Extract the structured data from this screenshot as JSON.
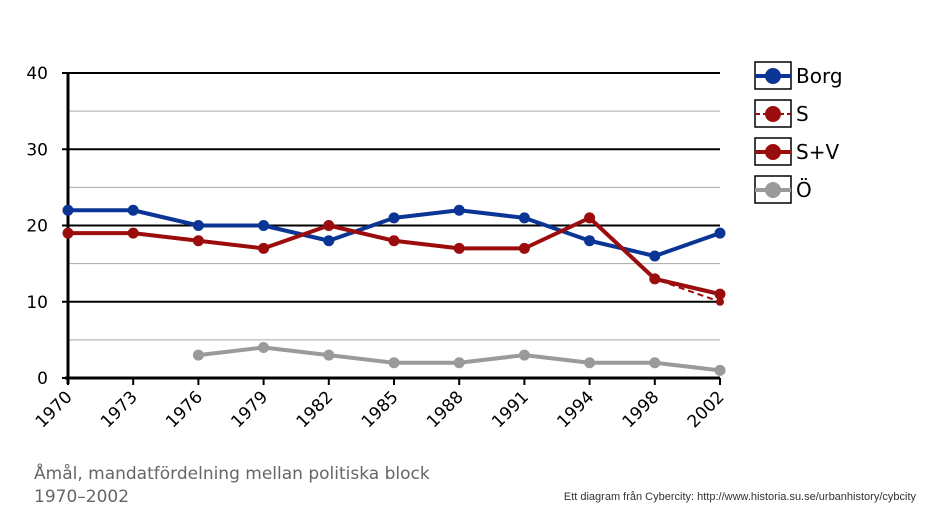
{
  "chart_data": {
    "type": "line",
    "categories": [
      "1970",
      "1973",
      "1976",
      "1979",
      "1982",
      "1985",
      "1988",
      "1991",
      "1994",
      "1998",
      "2002"
    ],
    "y_ticks": [
      "0",
      "10",
      "20",
      "30",
      "40"
    ],
    "ylim": [
      0,
      40
    ],
    "grid": true,
    "legend_position": "right",
    "series": [
      {
        "name": "Borg",
        "color": "#0a3594",
        "dashed": false,
        "values": [
          22,
          22,
          20,
          20,
          18,
          21,
          22,
          21,
          18,
          16,
          19
        ]
      },
      {
        "name": "S",
        "color": "#9b0d0d",
        "dashed": true,
        "values": [
          19,
          19,
          18,
          17,
          20,
          18,
          17,
          17,
          21,
          13,
          10
        ]
      },
      {
        "name": "S+V",
        "color": "#9b0d0d",
        "dashed": false,
        "values": [
          19,
          19,
          18,
          17,
          20,
          18,
          17,
          17,
          21,
          13,
          11
        ]
      },
      {
        "name": "Ö",
        "color": "#9a9a9a",
        "dashed": false,
        "values": [
          null,
          null,
          3,
          4,
          3,
          2,
          2,
          3,
          2,
          2,
          1
        ]
      }
    ]
  },
  "caption": "Åmål, mandatfördelning mellan politiska block 1970–2002",
  "credit": "Ett diagram från Cybercity: http://www.historia.su.se/urbanhistory/cybcity"
}
